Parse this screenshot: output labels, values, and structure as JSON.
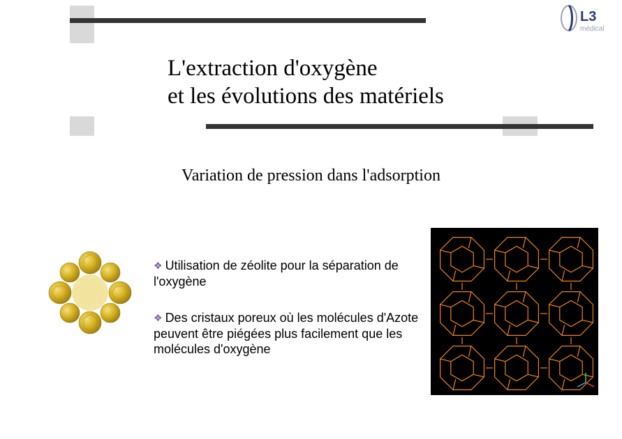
{
  "logo": {
    "text": "L3",
    "subtext": "médical"
  },
  "title": {
    "line1": "L'extraction d'oxygène",
    "line2": "et les évolutions des matériels"
  },
  "subtitle": "Variation de pression dans l'adsorption",
  "bullets": [
    "Utilisation de zéolite pour la séparation de l'oxygène",
    "Des cristaux poreux où les molécules d'Azote peuvent être piégées plus facilement que les molécules d'oxygène"
  ],
  "colors": {
    "bar_dark": "#333333",
    "bar_light": "#d9d9d9",
    "bullet_diamond": "#7a5fa0",
    "mol_left_fill": "#d4af1f",
    "mol_left_hilite": "#f4e07a",
    "mol_left_shadow": "#9a7d12",
    "lattice_bg": "#000000",
    "lattice_line": "#ff8c1a",
    "logo_primary": "#2a3a78",
    "logo_gray": "#9aa0af"
  }
}
